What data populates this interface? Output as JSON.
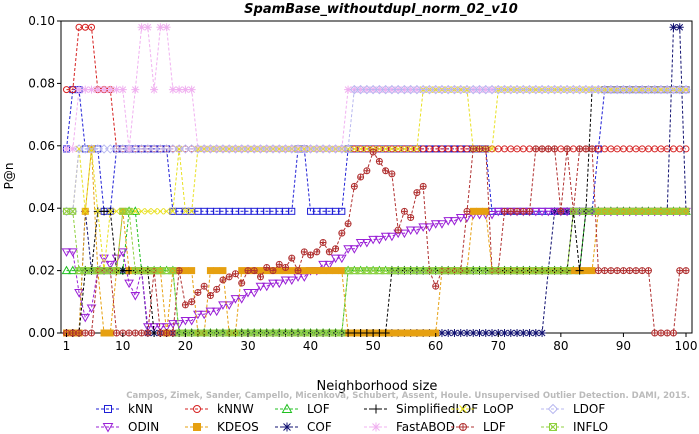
{
  "chart_data": {
    "type": "line",
    "title": "SpamBase_withoutdupl_norm_02_v10",
    "xlabel": "Neighborhood size",
    "ylabel": "P@n",
    "xlim": [
      0,
      100
    ],
    "ylim": [
      0,
      0.1
    ],
    "xticks": [
      1,
      10,
      20,
      30,
      40,
      50,
      60,
      70,
      80,
      90,
      100
    ],
    "yticks": [
      "0.00",
      "0.02",
      "0.04",
      "0.06",
      "0.08",
      "0.10"
    ],
    "grid": false,
    "legend_position": "bottom",
    "watermark": "Campos, Zimek, Sander, Campello, Micenková, Schubert, Assent, Houle. Unsupervised Outlier Detection. DAMI, 2015.",
    "series": [
      {
        "name": "kNN",
        "color": "#1f1fd6",
        "marker": "square",
        "points": [
          [
            1,
            0.059
          ],
          [
            2,
            0.078
          ],
          [
            3,
            0.078
          ],
          [
            4,
            0.059
          ],
          [
            5,
            0.059
          ],
          [
            6,
            0.059
          ],
          [
            7,
            0.039
          ],
          [
            8,
            0.039
          ],
          [
            9,
            0.059
          ],
          [
            15,
            0.059
          ],
          [
            17,
            0.059
          ],
          [
            18,
            0.039
          ],
          [
            35,
            0.039
          ],
          [
            37,
            0.039
          ],
          [
            38,
            0.059
          ],
          [
            39,
            0.059
          ],
          [
            40,
            0.039
          ],
          [
            45,
            0.039
          ],
          [
            46,
            0.059
          ],
          [
            68,
            0.059
          ],
          [
            69,
            0.039
          ],
          [
            85,
            0.039
          ],
          [
            86,
            0.059
          ],
          [
            87,
            0.078
          ],
          [
            100,
            0.078
          ]
        ]
      },
      {
        "name": "kNNW",
        "color": "#d62020",
        "marker": "circle",
        "points": [
          [
            1,
            0.078
          ],
          [
            2,
            0.078
          ],
          [
            3,
            0.098
          ],
          [
            5,
            0.098
          ],
          [
            6,
            0.078
          ],
          [
            8,
            0.078
          ],
          [
            9,
            0.059
          ],
          [
            100,
            0.059
          ]
        ]
      },
      {
        "name": "LOF",
        "color": "#20c020",
        "marker": "triangle-up",
        "points": [
          [
            1,
            0.02
          ],
          [
            10,
            0.02
          ],
          [
            11,
            0.039
          ],
          [
            12,
            0.039
          ],
          [
            13,
            0.02
          ],
          [
            18,
            0.02
          ],
          [
            19,
            0.0
          ],
          [
            45,
            0.0
          ],
          [
            46,
            0.02
          ],
          [
            83,
            0.02
          ],
          [
            84,
            0.039
          ],
          [
            100,
            0.039
          ]
        ]
      },
      {
        "name": "COF",
        "color": "#101070",
        "marker": "star",
        "points": [
          [
            1,
            0.0
          ],
          [
            3,
            0.0
          ],
          [
            4,
            0.039
          ],
          [
            5,
            0.02
          ],
          [
            12,
            0.02
          ],
          [
            13,
            0.02
          ],
          [
            14,
            0.0
          ],
          [
            76,
            0.0
          ],
          [
            77,
            0.0
          ],
          [
            78,
            0.02
          ],
          [
            79,
            0.039
          ],
          [
            95,
            0.039
          ],
          [
            97,
            0.039
          ],
          [
            98,
            0.098
          ],
          [
            100,
            0.039
          ]
        ]
      },
      {
        "name": "ODIN",
        "color": "#9a20d6",
        "marker": "triangle-down",
        "points": [
          [
            1,
            0.026
          ],
          [
            2,
            0.026
          ],
          [
            3,
            0.013
          ],
          [
            4,
            0.005
          ],
          [
            5,
            0.008
          ],
          [
            6,
            0.02
          ],
          [
            7,
            0.024
          ],
          [
            8,
            0.022
          ],
          [
            9,
            0.024
          ],
          [
            10,
            0.026
          ],
          [
            11,
            0.016
          ],
          [
            12,
            0.012
          ],
          [
            13,
            0.02
          ],
          [
            14,
            0.002
          ],
          [
            16,
            0.002
          ],
          [
            18,
            0.003
          ],
          [
            20,
            0.004
          ],
          [
            22,
            0.006
          ],
          [
            24,
            0.007
          ],
          [
            26,
            0.009
          ],
          [
            28,
            0.011
          ],
          [
            30,
            0.013
          ],
          [
            32,
            0.015
          ],
          [
            34,
            0.016
          ],
          [
            36,
            0.017
          ],
          [
            38,
            0.018
          ],
          [
            40,
            0.02
          ],
          [
            42,
            0.022
          ],
          [
            44,
            0.024
          ],
          [
            46,
            0.027
          ],
          [
            48,
            0.029
          ],
          [
            50,
            0.03
          ],
          [
            52,
            0.031
          ],
          [
            54,
            0.032
          ],
          [
            56,
            0.033
          ],
          [
            58,
            0.034
          ],
          [
            60,
            0.035
          ],
          [
            62,
            0.036
          ],
          [
            64,
            0.037
          ],
          [
            66,
            0.038
          ],
          [
            68,
            0.038
          ],
          [
            70,
            0.039
          ],
          [
            74,
            0.039
          ],
          [
            76,
            0.039
          ],
          [
            78,
            0.039
          ],
          [
            80,
            0.039
          ],
          [
            100,
            0.039
          ]
        ]
      },
      {
        "name": "KDEOS",
        "color": "#e6a010",
        "marker": "square-filled",
        "points": [
          [
            1,
            0.0
          ],
          [
            2,
            0.0
          ],
          [
            3,
            0.0
          ],
          [
            4,
            0.039
          ],
          [
            5,
            0.059
          ],
          [
            6,
            0.02
          ],
          [
            7,
            0.0
          ],
          [
            9,
            0.02
          ],
          [
            10,
            0.039
          ],
          [
            11,
            0.02
          ],
          [
            12,
            0.02
          ],
          [
            16,
            0.02
          ],
          [
            17,
            0.0
          ],
          [
            18,
            0.02
          ],
          [
            21,
            0.02
          ],
          [
            22,
            0.0
          ],
          [
            24,
            0.02
          ],
          [
            26,
            0.02
          ],
          [
            27,
            0.0
          ],
          [
            29,
            0.02
          ],
          [
            30,
            0.02
          ],
          [
            45,
            0.02
          ],
          [
            46,
            0.0
          ],
          [
            60,
            0.0
          ],
          [
            61,
            0.02
          ],
          [
            65,
            0.02
          ],
          [
            66,
            0.039
          ],
          [
            68,
            0.039
          ],
          [
            69,
            0.02
          ],
          [
            85,
            0.02
          ],
          [
            86,
            0.039
          ],
          [
            100,
            0.039
          ]
        ]
      },
      {
        "name": "SimplifiedLOF",
        "color": "#000000",
        "marker": "plus",
        "points": [
          [
            1,
            0.0
          ],
          [
            3,
            0.0
          ],
          [
            4,
            0.02
          ],
          [
            5,
            0.02
          ],
          [
            6,
            0.039
          ],
          [
            8,
            0.039
          ],
          [
            9,
            0.02
          ],
          [
            14,
            0.02
          ],
          [
            15,
            0.0
          ],
          [
            52,
            0.0
          ],
          [
            53,
            0.02
          ],
          [
            81,
            0.02
          ],
          [
            82,
            0.039
          ],
          [
            83,
            0.02
          ],
          [
            84,
            0.039
          ],
          [
            85,
            0.078
          ],
          [
            100,
            0.078
          ]
        ]
      },
      {
        "name": "FastABOD",
        "color": "#f0b0f0",
        "marker": "star-filled",
        "points": [
          [
            1,
            0.059
          ],
          [
            2,
            0.059
          ],
          [
            3,
            0.078
          ],
          [
            5,
            0.078
          ],
          [
            6,
            0.078
          ],
          [
            10,
            0.078
          ],
          [
            11,
            0.059
          ],
          [
            12,
            0.078
          ],
          [
            13,
            0.098
          ],
          [
            14,
            0.098
          ],
          [
            15,
            0.078
          ],
          [
            16,
            0.098
          ],
          [
            17,
            0.098
          ],
          [
            18,
            0.078
          ],
          [
            21,
            0.078
          ],
          [
            22,
            0.059
          ],
          [
            45,
            0.059
          ],
          [
            46,
            0.078
          ],
          [
            100,
            0.078
          ]
        ]
      },
      {
        "name": "LoOP",
        "color": "#e8e020",
        "marker": "x",
        "points": [
          [
            1,
            0.039
          ],
          [
            2,
            0.039
          ],
          [
            3,
            0.059
          ],
          [
            4,
            0.039
          ],
          [
            5,
            0.059
          ],
          [
            6,
            0.039
          ],
          [
            7,
            0.02
          ],
          [
            8,
            0.039
          ],
          [
            10,
            0.039
          ],
          [
            11,
            0.039
          ],
          [
            12,
            0.039
          ],
          [
            13,
            0.039
          ],
          [
            14,
            0.039
          ],
          [
            17,
            0.039
          ],
          [
            18,
            0.039
          ],
          [
            19,
            0.059
          ],
          [
            20,
            0.039
          ],
          [
            21,
            0.039
          ],
          [
            22,
            0.059
          ],
          [
            57,
            0.059
          ],
          [
            58,
            0.078
          ],
          [
            65,
            0.078
          ],
          [
            66,
            0.059
          ],
          [
            69,
            0.059
          ],
          [
            70,
            0.078
          ],
          [
            100,
            0.078
          ]
        ]
      },
      {
        "name": "LDF",
        "color": "#b03030",
        "marker": "circle-plus",
        "points": [
          [
            1,
            0.0
          ],
          [
            5,
            0.0
          ],
          [
            6,
            0.02
          ],
          [
            8,
            0.02
          ],
          [
            9,
            0.0
          ],
          [
            14,
            0.0
          ],
          [
            15,
            0.02
          ],
          [
            16,
            0.0
          ],
          [
            18,
            0.0
          ],
          [
            19,
            0.02
          ],
          [
            20,
            0.009
          ],
          [
            21,
            0.01
          ],
          [
            22,
            0.013
          ],
          [
            23,
            0.015
          ],
          [
            24,
            0.012
          ],
          [
            25,
            0.014
          ],
          [
            26,
            0.017
          ],
          [
            27,
            0.018
          ],
          [
            28,
            0.019
          ],
          [
            29,
            0.016
          ],
          [
            30,
            0.02
          ],
          [
            31,
            0.02
          ],
          [
            32,
            0.018
          ],
          [
            33,
            0.021
          ],
          [
            34,
            0.02
          ],
          [
            35,
            0.022
          ],
          [
            36,
            0.021
          ],
          [
            37,
            0.024
          ],
          [
            38,
            0.02
          ],
          [
            39,
            0.026
          ],
          [
            40,
            0.025
          ],
          [
            41,
            0.026
          ],
          [
            42,
            0.029
          ],
          [
            43,
            0.026
          ],
          [
            44,
            0.027
          ],
          [
            45,
            0.032
          ],
          [
            46,
            0.035
          ],
          [
            47,
            0.047
          ],
          [
            48,
            0.05
          ],
          [
            49,
            0.052
          ],
          [
            50,
            0.058
          ],
          [
            51,
            0.055
          ],
          [
            52,
            0.052
          ],
          [
            53,
            0.051
          ],
          [
            54,
            0.033
          ],
          [
            55,
            0.039
          ],
          [
            56,
            0.037
          ],
          [
            57,
            0.045
          ],
          [
            58,
            0.047
          ],
          [
            59,
            0.02
          ],
          [
            60,
            0.015
          ],
          [
            61,
            0.02
          ],
          [
            64,
            0.02
          ],
          [
            65,
            0.039
          ],
          [
            66,
            0.059
          ],
          [
            68,
            0.059
          ],
          [
            69,
            0.02
          ],
          [
            70,
            0.02
          ],
          [
            71,
            0.039
          ],
          [
            74,
            0.039
          ],
          [
            75,
            0.039
          ],
          [
            76,
            0.059
          ],
          [
            79,
            0.059
          ],
          [
            80,
            0.039
          ],
          [
            81,
            0.059
          ],
          [
            82,
            0.039
          ],
          [
            83,
            0.059
          ],
          [
            85,
            0.059
          ],
          [
            86,
            0.02
          ],
          [
            94,
            0.02
          ],
          [
            95,
            0.0
          ],
          [
            98,
            0.0
          ],
          [
            99,
            0.02
          ],
          [
            100,
            0.02
          ]
        ]
      },
      {
        "name": "LDOF",
        "color": "#b8b8f0",
        "marker": "diamond",
        "points": [
          [
            1,
            0.039
          ],
          [
            2,
            0.039
          ],
          [
            3,
            0.059
          ],
          [
            46,
            0.059
          ],
          [
            47,
            0.078
          ],
          [
            100,
            0.078
          ]
        ]
      },
      {
        "name": "INFLO",
        "color": "#90d040",
        "marker": "square-x",
        "points": [
          [
            1,
            0.039
          ],
          [
            2,
            0.039
          ],
          [
            3,
            0.02
          ],
          [
            9,
            0.02
          ],
          [
            10,
            0.039
          ],
          [
            11,
            0.039
          ],
          [
            12,
            0.02
          ],
          [
            18,
            0.02
          ],
          [
            19,
            0.0
          ],
          [
            45,
            0.0
          ],
          [
            46,
            0.02
          ],
          [
            81,
            0.02
          ],
          [
            82,
            0.039
          ],
          [
            100,
            0.039
          ]
        ]
      }
    ]
  }
}
